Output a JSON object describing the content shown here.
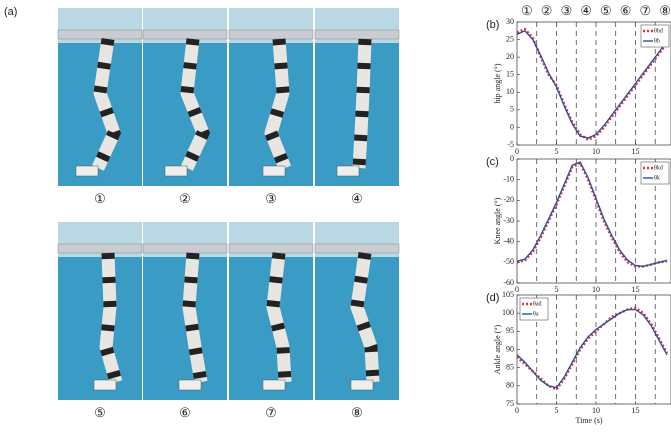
{
  "figure": {
    "panel_label": "(a)",
    "photo_labels": [
      "①",
      "②",
      "③",
      "④",
      "⑤",
      "⑥",
      "⑦",
      "⑧"
    ],
    "stage_labels": [
      "①",
      "②",
      "③",
      "④",
      "⑤",
      "⑥",
      "⑦",
      "⑧"
    ]
  },
  "chart_data": [
    {
      "type": "line",
      "label": "(b)",
      "y_label": "hip angle (°)",
      "legend": "top-right",
      "x": [
        0,
        1,
        2,
        3,
        4,
        5,
        6,
        7,
        8,
        9,
        10,
        11,
        12,
        13,
        14,
        15,
        16,
        17,
        18,
        19
      ],
      "xlim": [
        0,
        19.5
      ],
      "xticks": [
        0,
        5,
        10,
        15
      ],
      "ylim": [
        -5,
        30
      ],
      "yticks": [
        -5,
        0,
        5,
        10,
        15,
        20,
        25,
        30
      ],
      "phase_lines": [
        2.5,
        5,
        7.5,
        10,
        12.5,
        15,
        17.5
      ],
      "series": [
        {
          "name": "θhd",
          "color": "#e8312a",
          "style": "dotted",
          "values": [
            27,
            28,
            25.5,
            20,
            15,
            12,
            6.5,
            1.5,
            -2,
            -3.5,
            -2.5,
            0,
            3,
            6,
            9,
            12,
            15,
            18,
            21,
            24
          ]
        },
        {
          "name": "θh",
          "color": "#2a4fa8",
          "style": "solid",
          "values": [
            26.5,
            27.5,
            25,
            20.5,
            15.5,
            11.5,
            6,
            1,
            -2.5,
            -3,
            -2,
            0.5,
            3.5,
            6.5,
            9.5,
            12.5,
            15.5,
            18.5,
            21.5,
            24.5
          ]
        }
      ]
    },
    {
      "type": "line",
      "label": "(c)",
      "y_label": "Knee angle (°)",
      "legend": "top-right",
      "x": [
        0,
        1,
        2,
        3,
        4,
        5,
        6,
        7,
        8,
        9,
        10,
        11,
        12,
        13,
        14,
        15,
        16,
        17,
        18,
        19
      ],
      "xlim": [
        0,
        19.5
      ],
      "xticks": [
        0,
        5,
        10,
        15
      ],
      "ylim": [
        -60,
        0
      ],
      "yticks": [
        -60,
        -50,
        -40,
        -30,
        -20,
        -10,
        0
      ],
      "phase_lines": [
        2.5,
        5,
        7.5,
        10,
        12.5,
        15,
        17.5
      ],
      "series": [
        {
          "name": "θkd",
          "color": "#e8312a",
          "style": "dotted",
          "values": [
            -50,
            -49,
            -45,
            -38,
            -30,
            -22,
            -13,
            -4,
            -2,
            -10,
            -20,
            -30,
            -38,
            -45,
            -50,
            -52,
            -52,
            -51,
            -50,
            -49.5
          ]
        },
        {
          "name": "θk",
          "color": "#2a4fa8",
          "style": "solid",
          "values": [
            -49.5,
            -48.5,
            -44,
            -37,
            -29,
            -21,
            -12,
            -3,
            -1.5,
            -9,
            -19,
            -29,
            -37,
            -44,
            -49,
            -51.5,
            -52,
            -51,
            -50,
            -49
          ]
        }
      ]
    },
    {
      "type": "line",
      "label": "(d)",
      "y_label": "Ankle angle (°)",
      "x_label": "Time (s)",
      "legend": "top-left",
      "x": [
        0,
        1,
        2,
        3,
        4,
        5,
        6,
        7,
        8,
        9,
        10,
        11,
        12,
        13,
        14,
        15,
        16,
        17,
        18,
        19
      ],
      "xlim": [
        0,
        19.5
      ],
      "xticks": [
        0,
        5,
        10,
        15
      ],
      "ylim": [
        75,
        105
      ],
      "yticks": [
        75,
        80,
        85,
        90,
        95,
        100,
        105
      ],
      "phase_lines": [
        2.5,
        5,
        7.5,
        10,
        12.5,
        15,
        17.5
      ],
      "series": [
        {
          "name": "θad",
          "color": "#e8312a",
          "style": "dotted",
          "values": [
            88,
            86,
            84,
            82,
            80,
            79,
            82,
            86,
            90,
            93,
            95,
            97,
            99,
            100,
            101,
            101.5,
            100,
            97,
            93,
            89
          ]
        },
        {
          "name": "θa",
          "color": "#2a4fa8",
          "style": "solid",
          "values": [
            88.5,
            86.5,
            84,
            81.5,
            80,
            79.5,
            82.5,
            86.5,
            90.5,
            93.5,
            95.5,
            97,
            98.5,
            100,
            101,
            101,
            99.5,
            96.5,
            92.5,
            88.5
          ]
        }
      ]
    }
  ]
}
